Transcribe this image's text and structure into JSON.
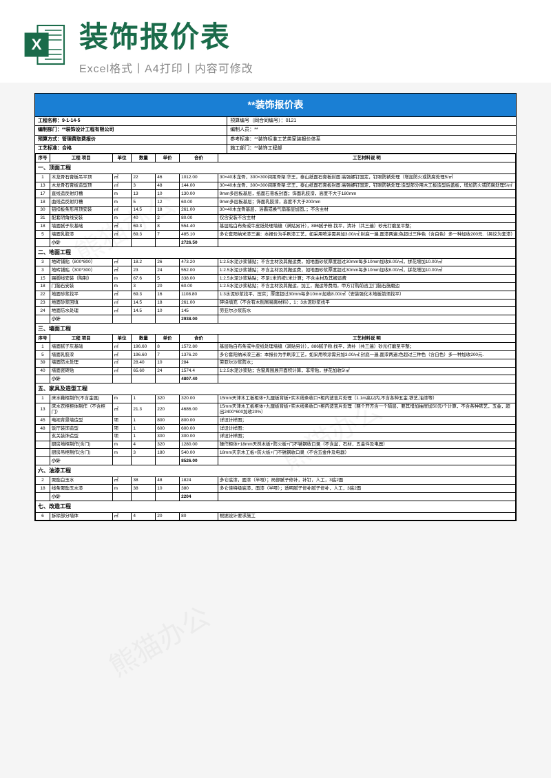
{
  "banner": {
    "title": "装饰报价表",
    "subtitle": "Excel格式丨A4打印丨内容可修改"
  },
  "doc_title": "**装饰报价表",
  "meta": [
    {
      "l": "工程名称：9-1-14-5",
      "r": "预算编号（同合同编号）：0121"
    },
    {
      "l": "编制部门：**装饰设计工程有限公司",
      "r": "编制人员：**"
    },
    {
      "l": "预算方式：管理费取费报价",
      "r": "参考标准：**装饰标准工艺类家装报价体系"
    },
    {
      "l": "工艺标准：合格",
      "r": "施工部门：**装饰工程部"
    }
  ],
  "headers": [
    "序号",
    "工程 项目",
    "单位",
    "数量",
    "单价",
    "合价",
    "工艺材料说 明"
  ],
  "sections": [
    {
      "title": "一、顶面工程",
      "rows": [
        [
          "1",
          "木龙骨石膏板吊平顶",
          "㎡",
          "22",
          "46",
          "1012.00",
          "30×40木龙骨，300×300间距骨架:华王，泰山纸面石膏板封面:高强螺钉固定，钉眼防锈处理（增加防火或防腐处理5/㎡"
        ],
        [
          "13",
          "木龙骨石膏板造型顶",
          "㎡",
          "3",
          "48",
          "144.00",
          "30×40木龙骨，300×300间距骨架:华王，泰山纸面石膏板封面:高强螺钉固定，钉眼防锈处理:造型部分用木工板造型后盖板，增加防火或防腐处理5/㎡"
        ],
        [
          "17",
          "直线造反射灯槽",
          "m",
          "13",
          "10",
          "130.00",
          "9mm多层板基层，纸面石膏板封面；饰面乳胶漆，高度不大于180mm"
        ],
        [
          "18",
          "曲线造反射灯槽",
          "m",
          "5",
          "12",
          "60.00",
          "9mm多层板基层；饰面乳胶漆，高度不大于200mm"
        ],
        [
          "30",
          "铝扣板条形吊顶安装",
          "㎡",
          "14.5",
          "18",
          "261.00",
          "30×40木龙骨基层，浴霸或换气扇基层加固，；不含主材"
        ],
        [
          "31",
          "配套阴角线安装",
          "m",
          "40",
          "2",
          "80.00",
          "仅含安装不含主材"
        ],
        [
          "18",
          "墙面腻子灰基础",
          "㎡",
          "69.3",
          "8",
          "554.40",
          "基层贴白布条或牛皮纸处理墙缝（满贴另计），886腻子粉.找平，清补（共三遍）砂光打磨至平整；"
        ],
        [
          "5",
          "墙面乳胶漆",
          "㎡",
          "69.3",
          "7",
          "485.10",
          "多仑套阳纳米漆三遍：本报价为手刷漆工艺，如采用喷涂需另加3.00/㎡;封底一遍,面漆两遍;色超过三种色（含白色）多一种加收200元.（另议为套漆）"
        ],
        [
          "",
          "小计",
          "",
          "",
          "",
          "2726.50",
          ""
        ]
      ]
    },
    {
      "title": "二、地面工程",
      "rows": [
        [
          "3",
          "地砖铺贴（800*800）",
          "㎡",
          "18.2",
          "26",
          "473.20",
          "1:2.5水泥沙浆铺贴；不含主材及其搬运费，如地面砂浆厚度超过30mm每多10mm加收8.00/㎡，拼花增加10.00/㎡"
        ],
        [
          "3",
          "地砖铺贴（300*300）",
          "㎡",
          "23",
          "24",
          "552.00",
          "1:2.5水泥沙浆铺贴；不含主材及其搬运费，如地面砂浆厚度超过30mm每多10mm加收8.00/㎡，拼花增加10.00/㎡"
        ],
        [
          "15",
          "踢脚线安装（陶制）",
          "m",
          "67.6",
          "5",
          "338.00",
          "1:2.5水泥沙浆粘贴；不足1米的按1米计算；不含主材及其搬运费"
        ],
        [
          "18",
          "门脑石安装",
          "m",
          "3",
          "20",
          "60.00",
          "1:2.5水泥沙浆粘贴；不含主材及其搬运，加工，搬运等费用，甲方订购前咨卫门脑石施磨边"
        ],
        [
          "22",
          "地面砂浆找平",
          "㎡",
          "69.3",
          "16",
          "1108.80",
          "1:3水泥砂浆找平，压实；厚度超过30mm每多10mm加收8.00/㎡（安装强化木地板前须找平）"
        ],
        [
          "23",
          "地面砂浆回填",
          "㎡",
          "14.5",
          "18",
          "261.00",
          "碎块填充（不含有木刨屑易腐材料），1：3水泥砂浆找平"
        ],
        [
          "24",
          "地面防水处理",
          "㎡",
          "14.5",
          "10",
          "145",
          "劳亚尔沙浆防水"
        ],
        [
          "",
          "小计",
          "",
          "",
          "",
          "2938.00",
          ""
        ]
      ]
    },
    {
      "title": "三、墙面工程",
      "header": true,
      "rows": [
        [
          "1",
          "墙面腻子灰基础",
          "㎡",
          "196.60",
          "8",
          "1572.80",
          "基层贴白布条或牛皮纸处理墙缝（满贴另计），886腻子粉.找平，清补（共三遍）砂光打磨至平整；"
        ],
        [
          "5",
          "墙面乳胶漆",
          "㎡",
          "196.60",
          "7",
          "1376.20",
          "多仑套阳纳米漆三遍：本报价为手刷漆工艺，如采用喷涂需另加3.00/㎡;封底一遍,面漆两遍;色超过三种色（含白色）多一种加收200元."
        ],
        [
          "39",
          "墙面防水处理",
          "㎡",
          "28.40",
          "10",
          "284",
          "劳亚尔沙浆防水；"
        ],
        [
          "40",
          "墙面瓷砖贴",
          "㎡",
          "65.60",
          "24",
          "1574.4",
          "1:2.5水泥沙浆贴；含窗周围展开面积计算，非常贴，拼花加收5/㎡"
        ],
        [
          "",
          "小计",
          "",
          "",
          "",
          "4807.40",
          ""
        ]
      ]
    },
    {
      "title": "五、家具及造型工程",
      "rows": [
        [
          "1",
          "床水鞋柜制作(不含金属)",
          "m",
          "1",
          "320",
          "320.00",
          "15mm天津木工板柜体+九厘板背板+实木线条收口+柜内波吉片处理（1.1m高以内,不含各种五金,铁艺,油漆等）"
        ],
        [
          "13",
          "床水衣柜柜体制作（不含柜门）",
          "㎡",
          "21.3",
          "220",
          "4686.00",
          "15mm天津木工板柜体+九厘板背板+实木线条收口+柜内波吉片处理（两个开方含一个隔层，要其增加抽屉加50元/个计算，不含各种铁艺，五金，超出2400*600加收20%）"
        ],
        [
          "45",
          "电视背景墙造型",
          "项",
          "1",
          "800",
          "800.00",
          "详设计样图；"
        ],
        [
          "48",
          "饭厅装饰造型",
          "项",
          "1",
          "600",
          "600.00",
          "详设计样图："
        ],
        [
          "",
          "玄关装饰造型",
          "项",
          "1",
          "300",
          "300.00",
          "详设计样图；"
        ],
        [
          "",
          "厨房地柜制作(含门)",
          "m",
          "4",
          "320",
          "1280.00",
          "操作柜体+18mm天然木板+防火板+门不锈钢收口录（不含盆，石材，五金件及电器）"
        ],
        [
          "",
          "厨房吊柜制作(含门)",
          "m",
          "3",
          "180",
          "540.00",
          "18mm天京木工板+防火板+门不锈钢收口录（不含五金件及电器）"
        ],
        [
          "",
          "小计",
          "",
          "",
          "",
          "8526.00",
          ""
        ]
      ]
    },
    {
      "title": "六、油漆工程",
      "rows": [
        [
          "2",
          "聚酯白玉水",
          "㎡",
          "38",
          "48",
          "1824",
          "多仑底漆，面漆（半哑）；局部腻子修补，补钉，人工，3底2面"
        ],
        [
          "18",
          "线条聚酯玉水漆",
          "m",
          "38",
          "10",
          "380",
          "多仑佳特级底漆，面漆（半哑）；透明腻子修补腻子修补，人工，3底2面"
        ],
        [
          "",
          "小计",
          "",
          "",
          "",
          "2204",
          ""
        ]
      ]
    },
    {
      "title": "七、改造工程",
      "rows": [
        [
          "6",
          "拆除部分墙体",
          "㎡",
          "4",
          "20",
          "80",
          "根据设计要求施工"
        ]
      ]
    }
  ],
  "colors": {
    "header_bg": "#1a7fd4",
    "excel_green": "#1a6b4a"
  }
}
